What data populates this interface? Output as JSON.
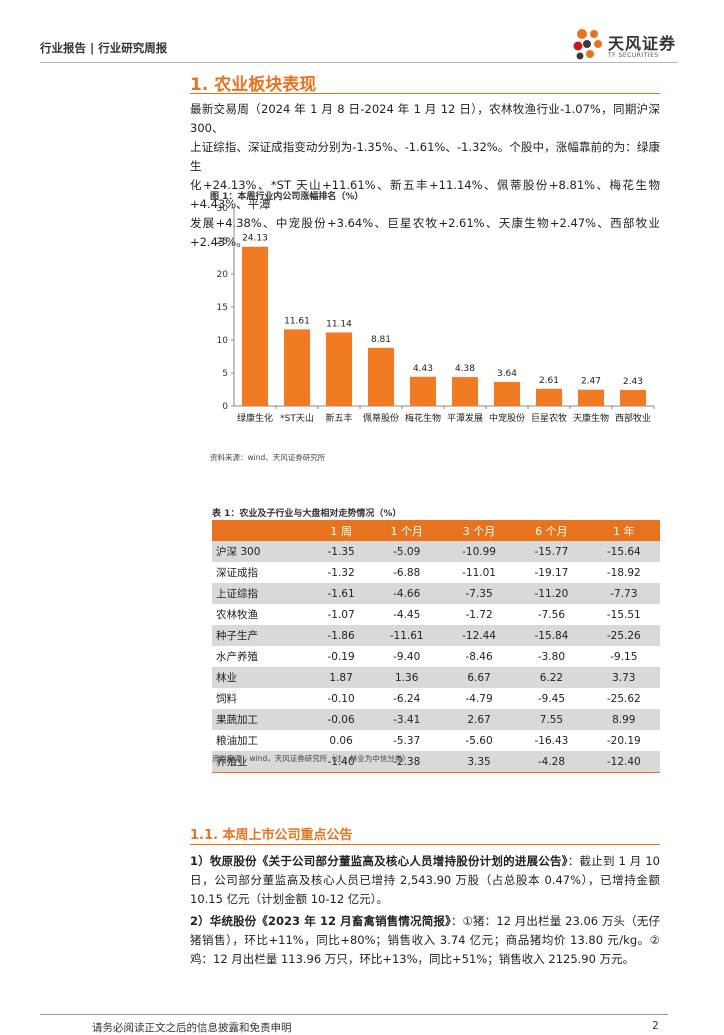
{
  "header": {
    "left_text": "行业报告 | 行业研究周报",
    "logo_cn": "天风证券",
    "logo_en": "TF SECURITIES"
  },
  "section1": {
    "title": "1. 农业板块表现",
    "paragraph": [
      "最新交易周（2024 年 1 月 8 日-2024 年 1 月 12 日），农林牧渔行业-1.07%，同期沪深 300、",
      "上证综指、深证成指变动分别为-1.35%、-1.61%、-1.32%。个股中，涨幅靠前的为：绿康生",
      "化+24.13%、*ST 天山+11.61%、新五丰+11.14%、佩蒂股份+8.81%、梅花生物+4.43%、平潭",
      "发展+4.38%、中宠股份+3.64%、巨星农牧+2.61%、天康生物+2.47%、西部牧业+2.43%。"
    ]
  },
  "figure1": {
    "title": "图 1：本周行业内公司涨幅排名（%）",
    "source": "资料来源：wind、天风证券研究所"
  },
  "chart_data": {
    "type": "bar",
    "title": "图 1：本周行业内公司涨幅排名（%）",
    "categories": [
      "绿康生化",
      "*ST天山",
      "新五丰",
      "佩蒂股份",
      "梅花生物",
      "平潭发展",
      "中宠股份",
      "巨星农牧",
      "天康生物",
      "西部牧业"
    ],
    "values": [
      24.13,
      11.61,
      11.14,
      8.81,
      4.43,
      4.38,
      3.64,
      2.61,
      2.47,
      2.43
    ],
    "value_labels": [
      "24.13",
      "11.61",
      "11.14",
      "8.81",
      "4.43",
      "4.38",
      "3.64",
      "2.61",
      "2.47",
      "2.43"
    ],
    "yticks": [
      "0",
      "5",
      "10",
      "15",
      "20",
      "25",
      "30"
    ],
    "ylim": [
      0,
      30
    ],
    "bar_color": "#f07b22",
    "grid": false,
    "legend": "none"
  },
  "table1": {
    "title": "表 1：农业及子行业与大盘相对走势情况（%）",
    "columns": [
      "",
      "1 周",
      "1 个月",
      "3 个月",
      "6 个月",
      "1 年"
    ],
    "rows": [
      {
        "name": "沪深 300",
        "values": [
          "-1.35",
          "-5.09",
          "-10.99",
          "-15.77",
          "-15.64"
        ]
      },
      {
        "name": "深证成指",
        "values": [
          "-1.32",
          "-6.88",
          "-11.01",
          "-19.17",
          "-18.92"
        ]
      },
      {
        "name": "上证综指",
        "values": [
          "-1.61",
          "-4.66",
          "-7.35",
          "-11.20",
          "-7.73"
        ]
      },
      {
        "name": "农林牧渔",
        "values": [
          "-1.07",
          "-4.45",
          "-1.72",
          "-7.56",
          "-15.51"
        ]
      },
      {
        "name": "种子生产",
        "values": [
          "-1.86",
          "-11.61",
          "-12.44",
          "-15.84",
          "-25.26"
        ]
      },
      {
        "name": "水产养殖",
        "values": [
          "-0.19",
          "-9.40",
          "-8.46",
          "-3.80",
          "-9.15"
        ]
      },
      {
        "name": "林业",
        "values": [
          "1.87",
          "1.36",
          "6.67",
          "6.22",
          "3.73"
        ]
      },
      {
        "name": "饲料",
        "values": [
          "-0.10",
          "-6.24",
          "-4.79",
          "-9.45",
          "-25.62"
        ]
      },
      {
        "name": "果蔬加工",
        "values": [
          "-0.06",
          "-3.41",
          "2.67",
          "7.55",
          "8.99"
        ]
      },
      {
        "name": "粮油加工",
        "values": [
          "0.06",
          "-5.37",
          "-5.60",
          "-16.43",
          "-20.19"
        ]
      },
      {
        "name": "养殖业",
        "values": [
          "-1.40",
          "-2.38",
          "3.35",
          "-4.28",
          "-12.40"
        ]
      }
    ],
    "source": "资料来源：wind，天风证券研究所（注：林业为中信分类）"
  },
  "section11": {
    "title": "1.1. 本周上市公司重点公告",
    "item1_bold": "1）牧原股份《关于公司部分董监高及核心人员增持股份计划的进展公告》",
    "item1_text": "：截止到 1 月 10 日，公司部分董监高及核心人员已增持 2,543.90 万股（占总股本 0.47%），已增持金额 10.15 亿元（计划金额 10-12 亿元）。",
    "item2_bold": "2）华统股份《2023 年 12 月畜禽销售情况简报》",
    "item2_text": "：①猪：12 月出栏量 23.06 万头（无仔猪销售），环比+11%，同比+80%；销售收入 3.74 亿元；商品猪均价 13.80 元/kg。②鸡：12 月出栏量 113.96 万只，环比+13%，同比+51%；销售收入 2125.90 万元。"
  },
  "footer": {
    "text": "请务必阅读正文之后的信息披露和免责申明",
    "page": "2"
  }
}
